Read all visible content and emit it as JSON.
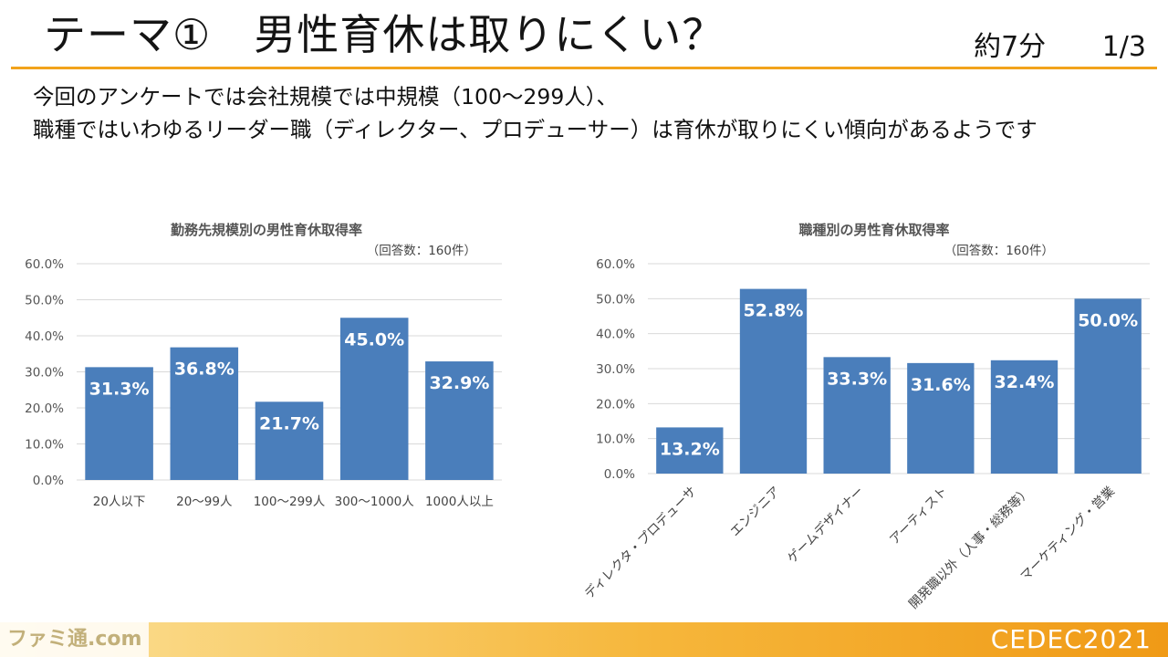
{
  "slide": {
    "title": "テーマ①　男性育休は取りにくい？",
    "duration": "約7分",
    "page": "1/3",
    "lead_lines": [
      "今回のアンケートでは会社規模では中規模（100～299人）、",
      "職種ではいわゆるリーダー職（ディレクター、プロデューサー）は育休が取りにくい傾向があるようです"
    ]
  },
  "footer": {
    "left_logo": "ファミ通.com",
    "right_logo": "CEDEC2021"
  },
  "chart_data": [
    {
      "type": "bar",
      "title": "勤務先規模別の男性育休取得率",
      "subtitle": "（回答数：160件）",
      "categories": [
        "20人以下",
        "20～99人",
        "100～299人",
        "300～1000人",
        "1000人以上"
      ],
      "values": [
        31.3,
        36.8,
        21.7,
        45.0,
        32.9
      ],
      "labels": [
        "31.3%",
        "36.8%",
        "21.7%",
        "45.0%",
        "32.9%"
      ],
      "ylim": [
        0,
        60
      ],
      "yticks": [
        "0.0%",
        "10.0%",
        "20.0%",
        "30.0%",
        "40.0%",
        "50.0%",
        "60.0%"
      ],
      "grid": true,
      "bar_color": "#4a7ebb"
    },
    {
      "type": "bar",
      "title": "職種別の男性育休取得率",
      "subtitle": "（回答数：160件）",
      "categories": [
        "ディレクタ・プロデューサ",
        "エンジニア",
        "ゲームデザイナー",
        "アーティスト",
        "開発職以外（人事・総務等）",
        "マーケティング・営業"
      ],
      "values": [
        13.2,
        52.8,
        33.3,
        31.6,
        32.4,
        50.0
      ],
      "labels": [
        "13.2%",
        "52.8%",
        "33.3%",
        "31.6%",
        "32.4%",
        "50.0%"
      ],
      "ylim": [
        0,
        60
      ],
      "yticks": [
        "0.0%",
        "10.0%",
        "20.0%",
        "30.0%",
        "40.0%",
        "50.0%",
        "60.0%"
      ],
      "grid": true,
      "bar_color": "#4a7ebb"
    }
  ]
}
